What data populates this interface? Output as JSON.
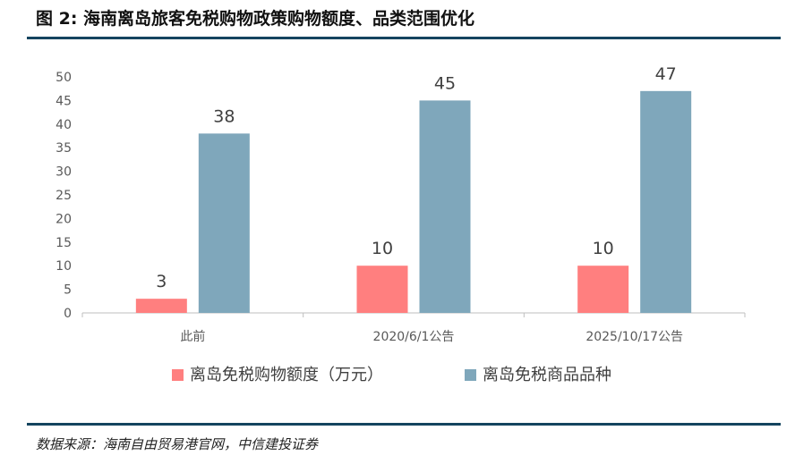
{
  "figure": {
    "title": "图 2: 海南离岛旅客免税购物政策购物额度、品类范围优化",
    "source": "数据来源：海南自由贸易港官网，中信建投证券"
  },
  "chart_data": {
    "type": "bar",
    "categories": [
      "此前",
      "2020/6/1公告",
      "2025/10/17公告"
    ],
    "series": [
      {
        "name": "离岛免税购物额度（万元）",
        "values": [
          3,
          10,
          10
        ],
        "color": "#ff7f7f"
      },
      {
        "name": "离岛免税商品品种",
        "values": [
          38,
          45,
          47
        ],
        "color": "#7fa7bb"
      }
    ],
    "ylim": [
      0,
      50
    ],
    "yticks": [
      0,
      5,
      10,
      15,
      20,
      25,
      30,
      35,
      40,
      45,
      50
    ],
    "grid": false,
    "legend_position": "bottom",
    "data_labels": true
  }
}
